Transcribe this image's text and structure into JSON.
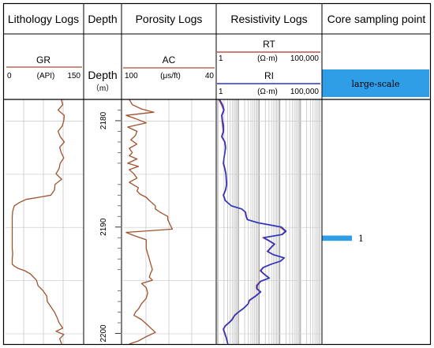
{
  "chart_data": {
    "type": "line",
    "tracks": {
      "lithology": {
        "title": "Lithology Logs"
      },
      "depth": {
        "title": "Depth",
        "label": "Depth",
        "unit": "（m）",
        "range": [
          2178,
          2201
        ],
        "ticks": [
          2180,
          2190,
          2200
        ]
      },
      "porosity": {
        "title": "Porosity Logs"
      },
      "resistivity": {
        "title": "Resistivity Logs"
      },
      "core": {
        "title": "Core sampling point"
      }
    },
    "curves": {
      "GR": {
        "name": "GR",
        "unit": "(API)",
        "left_label": "0",
        "right_label": "150",
        "range": [
          0,
          150
        ],
        "color": "#a0522d"
      },
      "AC": {
        "name": "AC",
        "unit": "(μs/ft)",
        "left_label": "100",
        "right_label": "40",
        "range": [
          100,
          40
        ],
        "color": "#a0522d"
      },
      "RT": {
        "name": "RT",
        "unit": "(Ω·m)",
        "left_label": "1",
        "right_label": "100,000",
        "range": [
          1,
          100000
        ],
        "scale": "log",
        "color": "#c0504d"
      },
      "RI": {
        "name": "RI",
        "unit": "(Ω·m)",
        "left_label": "1",
        "right_label": "100,000",
        "range": [
          1,
          100000
        ],
        "scale": "log",
        "color": "#2b35c8"
      }
    },
    "core_sampling": {
      "legend_label": "large-scale",
      "color": "#2f9ee6",
      "samples": [
        {
          "label": "1",
          "depth_range": [
            2190.8,
            2191.3
          ]
        }
      ]
    },
    "series": [
      {
        "name": "GR",
        "x_unit": "API",
        "points": [
          [
            2178.0,
            108
          ],
          [
            2178.5,
            111
          ],
          [
            2179.0,
            102
          ],
          [
            2179.5,
            114
          ],
          [
            2180.0,
            113
          ],
          [
            2180.5,
            110
          ],
          [
            2181.0,
            102
          ],
          [
            2181.5,
            106
          ],
          [
            2182.0,
            114
          ],
          [
            2182.5,
            105
          ],
          [
            2183.0,
            108
          ],
          [
            2183.5,
            113
          ],
          [
            2184.0,
            106
          ],
          [
            2184.5,
            104
          ],
          [
            2185.0,
            98
          ],
          [
            2185.5,
            109
          ],
          [
            2186.0,
            96
          ],
          [
            2186.5,
            95
          ],
          [
            2187.0,
            88
          ],
          [
            2187.2,
            65
          ],
          [
            2187.4,
            40
          ],
          [
            2187.7,
            27
          ],
          [
            2188.0,
            17
          ],
          [
            2188.5,
            14
          ],
          [
            2189.0,
            13
          ],
          [
            2189.5,
            13
          ],
          [
            2190.0,
            13
          ],
          [
            2190.5,
            13
          ],
          [
            2191.0,
            13
          ],
          [
            2191.5,
            13
          ],
          [
            2192.0,
            13
          ],
          [
            2192.5,
            14
          ],
          [
            2193.0,
            13
          ],
          [
            2193.5,
            13
          ],
          [
            2193.7,
            18
          ],
          [
            2193.9,
            25
          ],
          [
            2194.1,
            37
          ],
          [
            2194.4,
            48
          ],
          [
            2195.0,
            60
          ],
          [
            2195.5,
            63
          ],
          [
            2196.0,
            73
          ],
          [
            2196.5,
            80
          ],
          [
            2197.0,
            81
          ],
          [
            2197.5,
            88
          ],
          [
            2198.0,
            95
          ],
          [
            2198.5,
            100
          ],
          [
            2199.0,
            104
          ],
          [
            2199.5,
            111
          ],
          [
            2199.8,
            98
          ],
          [
            2200.1,
            113
          ],
          [
            2200.5,
            105
          ],
          [
            2201.0,
            109
          ]
        ]
      },
      {
        "name": "AC",
        "x_unit": "μs/ft",
        "points": [
          [
            2178.0,
            96
          ],
          [
            2178.5,
            94
          ],
          [
            2178.9,
            88
          ],
          [
            2179.2,
            80
          ],
          [
            2179.5,
            98
          ],
          [
            2179.8,
            92
          ],
          [
            2180.2,
            85
          ],
          [
            2180.6,
            97
          ],
          [
            2181.0,
            91
          ],
          [
            2181.4,
            92
          ],
          [
            2181.8,
            95
          ],
          [
            2182.2,
            91
          ],
          [
            2182.6,
            96
          ],
          [
            2183.0,
            94
          ],
          [
            2183.3,
            96
          ],
          [
            2183.6,
            91
          ],
          [
            2184.0,
            97
          ],
          [
            2184.3,
            90
          ],
          [
            2184.6,
            96
          ],
          [
            2185.0,
            93
          ],
          [
            2185.4,
            91
          ],
          [
            2185.8,
            96
          ],
          [
            2186.3,
            90
          ],
          [
            2186.6,
            91
          ],
          [
            2186.9,
            89
          ],
          [
            2187.2,
            85
          ],
          [
            2187.5,
            83
          ],
          [
            2188.0,
            79
          ],
          [
            2188.3,
            79
          ],
          [
            2188.6,
            76
          ],
          [
            2189.0,
            71
          ],
          [
            2189.3,
            71
          ],
          [
            2189.6,
            70
          ],
          [
            2189.9,
            69
          ],
          [
            2190.2,
            68
          ],
          [
            2190.5,
            98
          ],
          [
            2190.8,
            93
          ],
          [
            2191.2,
            85
          ],
          [
            2191.6,
            85
          ],
          [
            2192.0,
            85
          ],
          [
            2192.5,
            84
          ],
          [
            2193.0,
            83
          ],
          [
            2193.5,
            82
          ],
          [
            2194.0,
            81
          ],
          [
            2194.3,
            82
          ],
          [
            2194.7,
            83
          ],
          [
            2195.0,
            81
          ],
          [
            2195.3,
            88
          ],
          [
            2195.7,
            85
          ],
          [
            2196.2,
            84
          ],
          [
            2196.7,
            85
          ],
          [
            2197.2,
            88
          ],
          [
            2197.7,
            90
          ],
          [
            2198.0,
            92
          ],
          [
            2198.3,
            93
          ],
          [
            2198.7,
            88
          ],
          [
            2199.1,
            85
          ],
          [
            2199.5,
            82
          ],
          [
            2199.9,
            79
          ],
          [
            2200.3,
            85
          ],
          [
            2200.7,
            90
          ],
          [
            2201.0,
            96
          ]
        ]
      },
      {
        "name": "RT",
        "x_unit": "Ω·m",
        "points": [
          [
            2178.0,
            1.1
          ],
          [
            2178.5,
            1.5
          ],
          [
            2179.0,
            1.9
          ],
          [
            2179.5,
            1.5
          ],
          [
            2180.0,
            1.6
          ],
          [
            2180.5,
            1.7
          ],
          [
            2181.0,
            1.8
          ],
          [
            2181.5,
            1.5
          ],
          [
            2182.0,
            2.1
          ],
          [
            2182.5,
            2.3
          ],
          [
            2183.0,
            2.2
          ],
          [
            2183.5,
            2.0
          ],
          [
            2184.0,
            1.8
          ],
          [
            2184.5,
            2.1
          ],
          [
            2185.0,
            2.4
          ],
          [
            2185.5,
            2.5
          ],
          [
            2186.0,
            2.6
          ],
          [
            2186.5,
            2.3
          ],
          [
            2187.0,
            1.8
          ],
          [
            2187.5,
            2.2
          ],
          [
            2188.0,
            4.4
          ],
          [
            2188.3,
            14.1
          ],
          [
            2188.6,
            21
          ],
          [
            2189.0,
            23
          ],
          [
            2189.3,
            26
          ],
          [
            2189.6,
            80
          ],
          [
            2190.0,
            1020
          ],
          [
            2190.4,
            1780
          ],
          [
            2190.7,
            1200
          ],
          [
            2191.0,
            150
          ],
          [
            2191.3,
            290
          ],
          [
            2191.6,
            520
          ],
          [
            2192.0,
            330
          ],
          [
            2192.3,
            240
          ],
          [
            2192.6,
            470
          ],
          [
            2192.9,
            1550
          ],
          [
            2193.2,
            1050
          ],
          [
            2193.5,
            360
          ],
          [
            2193.8,
            150
          ],
          [
            2194.1,
            110
          ],
          [
            2194.4,
            160
          ],
          [
            2194.8,
            290
          ],
          [
            2195.1,
            110
          ],
          [
            2195.5,
            72
          ],
          [
            2195.8,
            74
          ],
          [
            2196.1,
            110
          ],
          [
            2196.5,
            63
          ],
          [
            2196.9,
            32
          ],
          [
            2197.2,
            29
          ],
          [
            2197.6,
            18
          ],
          [
            2198.0,
            9.4
          ],
          [
            2198.3,
            6.3
          ],
          [
            2198.7,
            4.7
          ],
          [
            2199.0,
            3.3
          ],
          [
            2199.3,
            2.2
          ],
          [
            2199.6,
            1.8
          ],
          [
            2200.0,
            2.1
          ],
          [
            2200.4,
            2.5
          ],
          [
            2200.8,
            2.8
          ],
          [
            2201.0,
            3.0
          ]
        ]
      },
      {
        "name": "RI",
        "x_unit": "Ω·m",
        "points": [
          [
            2178.0,
            1.2
          ],
          [
            2178.5,
            1.7
          ],
          [
            2179.0,
            2.0
          ],
          [
            2179.5,
            1.6
          ],
          [
            2180.0,
            1.7
          ],
          [
            2180.5,
            1.9
          ],
          [
            2181.0,
            1.9
          ],
          [
            2181.5,
            1.6
          ],
          [
            2182.0,
            2.2
          ],
          [
            2182.5,
            2.4
          ],
          [
            2183.0,
            2.2
          ],
          [
            2183.5,
            2.0
          ],
          [
            2184.0,
            1.9
          ],
          [
            2184.5,
            2.2
          ],
          [
            2185.0,
            2.5
          ],
          [
            2185.5,
            2.6
          ],
          [
            2186.0,
            2.7
          ],
          [
            2186.5,
            2.4
          ],
          [
            2187.0,
            1.9
          ],
          [
            2187.5,
            2.3
          ],
          [
            2188.0,
            4.5
          ],
          [
            2188.3,
            14.4
          ],
          [
            2188.6,
            22
          ],
          [
            2189.0,
            24
          ],
          [
            2189.3,
            27
          ],
          [
            2189.6,
            90
          ],
          [
            2190.0,
            1200
          ],
          [
            2190.4,
            2000
          ],
          [
            2190.7,
            1300
          ],
          [
            2191.0,
            170
          ],
          [
            2191.3,
            320
          ],
          [
            2191.6,
            560
          ],
          [
            2192.0,
            350
          ],
          [
            2192.3,
            260
          ],
          [
            2192.6,
            500
          ],
          [
            2192.9,
            1650
          ],
          [
            2193.2,
            1100
          ],
          [
            2193.5,
            380
          ],
          [
            2193.8,
            160
          ],
          [
            2194.1,
            120
          ],
          [
            2194.4,
            170
          ],
          [
            2194.8,
            310
          ],
          [
            2195.1,
            120
          ],
          [
            2195.5,
            80
          ],
          [
            2195.8,
            79
          ],
          [
            2196.1,
            120
          ],
          [
            2196.5,
            68
          ],
          [
            2196.9,
            34
          ],
          [
            2197.2,
            30
          ],
          [
            2197.6,
            19
          ],
          [
            2198.0,
            10
          ],
          [
            2198.3,
            6.6
          ],
          [
            2198.7,
            5.0
          ],
          [
            2199.0,
            3.5
          ],
          [
            2199.3,
            2.3
          ],
          [
            2199.6,
            1.9
          ],
          [
            2200.0,
            2.2
          ],
          [
            2200.4,
            2.6
          ],
          [
            2200.8,
            2.9
          ],
          [
            2201.0,
            3.1
          ]
        ]
      }
    ]
  }
}
